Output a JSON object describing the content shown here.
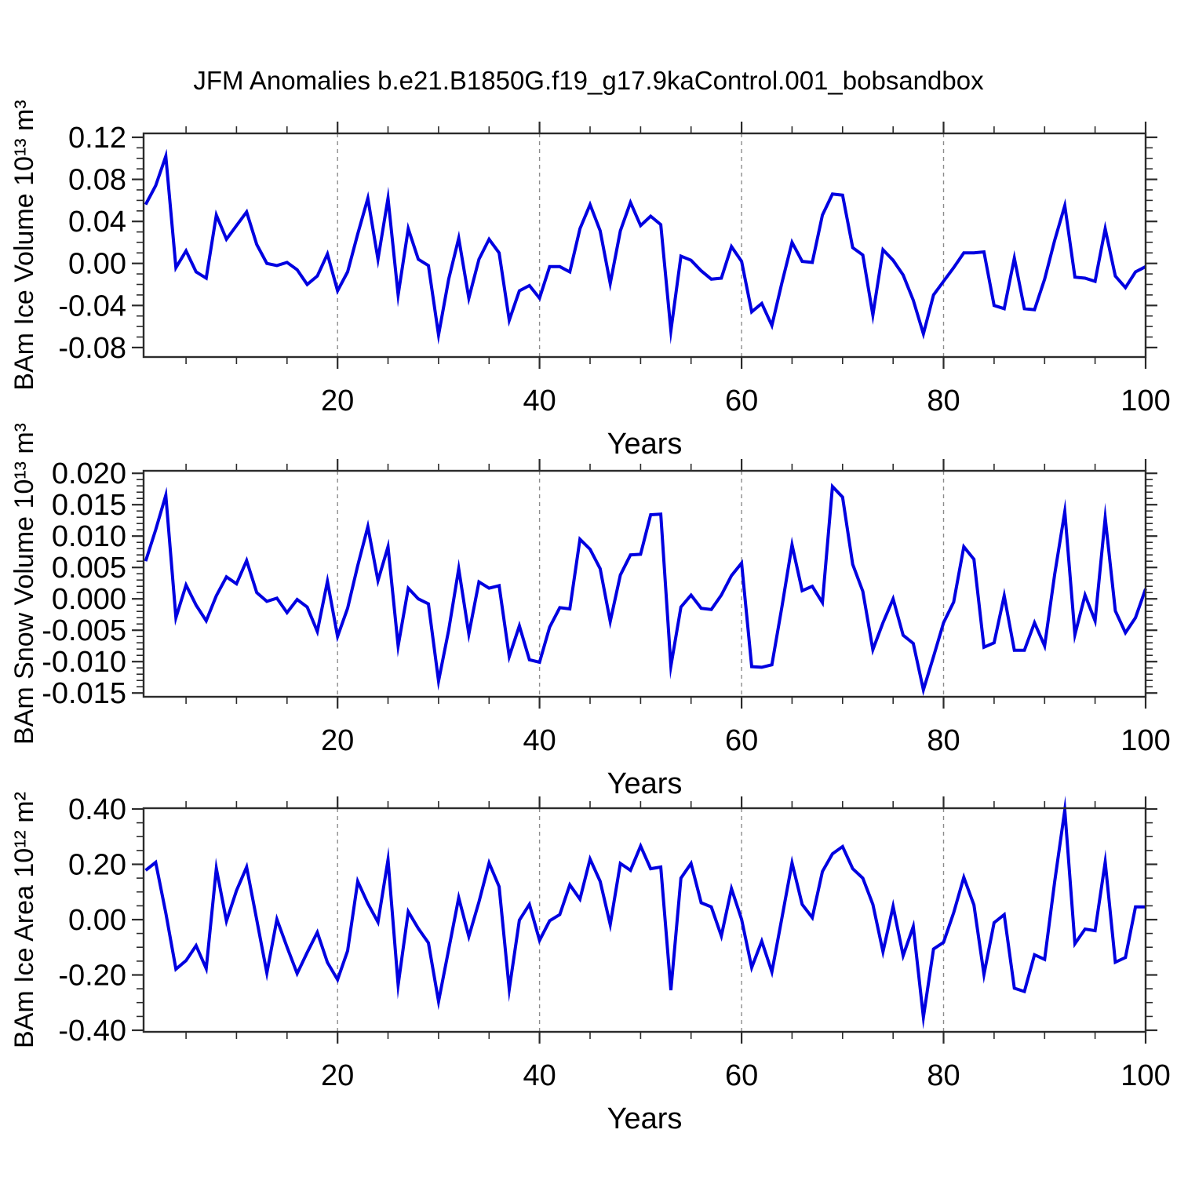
{
  "page_title": "JFM Anomalies b.e21.B1850G.f19_g17.9kaControl.001_bobsandbox",
  "colors": {
    "line": "#0000E0",
    "grid": "#8c8c8c",
    "frame": "#2b2b2b",
    "text": "#000000"
  },
  "x_axis": {
    "label": "Years",
    "year_start": 1,
    "year_end": 100,
    "range": [
      0.8,
      100
    ],
    "major_ticks": [
      20,
      40,
      60,
      80,
      100
    ],
    "minor_step": 5,
    "grid_lines": [
      20,
      40,
      60,
      80
    ]
  },
  "chart_data": [
    {
      "type": "line",
      "id": "ice-volume",
      "ylabel": "BAm Ice Volume 10¹³ m³",
      "legend": null,
      "grid": "vertical-dashed",
      "ylim": [
        -0.089,
        0.1237
      ],
      "yticks": [
        0.12,
        0.08,
        0.04,
        0.0,
        -0.04,
        -0.08
      ],
      "yminor_step": 0.01,
      "ytick_decimals": 2,
      "values": [
        0.056,
        0.074,
        0.102,
        -0.004,
        0.012,
        -0.008,
        -0.014,
        0.046,
        0.023,
        0.036,
        0.049,
        0.018,
        0.0,
        -0.002,
        0.001,
        -0.006,
        -0.02,
        -0.012,
        0.009,
        -0.026,
        -0.008,
        0.028,
        0.062,
        0.004,
        0.062,
        -0.03,
        0.033,
        0.004,
        -0.002,
        -0.068,
        -0.015,
        0.024,
        -0.033,
        0.004,
        0.023,
        0.01,
        -0.054,
        -0.026,
        -0.021,
        -0.033,
        -0.003,
        -0.003,
        -0.008,
        0.033,
        0.056,
        0.031,
        -0.019,
        0.031,
        0.058,
        0.036,
        0.045,
        0.037,
        -0.064,
        0.007,
        0.003,
        -0.007,
        -0.015,
        -0.014,
        0.016,
        0.002,
        -0.046,
        -0.038,
        -0.059,
        -0.018,
        0.02,
        0.002,
        0.001,
        0.046,
        0.066,
        0.065,
        0.015,
        0.008,
        -0.049,
        0.013,
        0.003,
        -0.011,
        -0.035,
        -0.067,
        -0.03,
        -0.017,
        -0.004,
        0.01,
        0.01,
        0.011,
        -0.04,
        -0.043,
        0.005,
        -0.043,
        -0.044,
        -0.015,
        0.022,
        0.055,
        -0.013,
        -0.014,
        -0.017,
        0.033,
        -0.012,
        -0.023,
        -0.008,
        -0.003
      ]
    },
    {
      "type": "line",
      "id": "snow-volume",
      "ylabel": "BAm Snow Volume 10¹³ m³",
      "legend": null,
      "grid": "vertical-dashed",
      "ylim": [
        -0.0156,
        0.0204
      ],
      "yticks": [
        0.02,
        0.015,
        0.01,
        0.005,
        0.0,
        -0.005,
        -0.01,
        -0.015
      ],
      "yminor_step": 0.001,
      "ytick_decimals": 3,
      "values": [
        0.006,
        0.011,
        0.0165,
        -0.003,
        0.0022,
        -0.001,
        -0.0035,
        0.0005,
        0.0035,
        0.0024,
        0.0061,
        0.001,
        -0.0004,
        0.0001,
        -0.0022,
        -0.0001,
        -0.0013,
        -0.0052,
        0.0028,
        -0.006,
        -0.0015,
        0.0053,
        0.0115,
        0.0029,
        0.0083,
        -0.0075,
        0.0017,
        0.0,
        -0.0008,
        -0.0131,
        -0.005,
        0.0048,
        -0.0056,
        0.0027,
        0.0017,
        0.0021,
        -0.0092,
        -0.0043,
        -0.0097,
        -0.0101,
        -0.0045,
        -0.0014,
        -0.0016,
        0.0095,
        0.0079,
        0.0048,
        -0.0036,
        0.0038,
        0.007,
        0.0071,
        0.0134,
        0.0135,
        -0.0107,
        -0.0013,
        0.0006,
        -0.0015,
        -0.0017,
        0.0006,
        0.0037,
        0.0057,
        -0.0108,
        -0.0109,
        -0.0105,
        -0.0012,
        0.0086,
        0.0013,
        0.002,
        -0.0006,
        0.0179,
        0.0162,
        0.0055,
        0.0012,
        -0.0081,
        -0.0038,
        0.0,
        -0.0058,
        -0.0071,
        -0.0145,
        -0.0092,
        -0.0038,
        -0.0005,
        0.0083,
        0.0063,
        -0.0077,
        -0.007,
        0.0005,
        -0.0082,
        -0.0082,
        -0.0038,
        -0.0075,
        0.0039,
        0.0139,
        -0.0057,
        0.0006,
        -0.0035,
        0.0129,
        -0.0019,
        -0.0054,
        -0.003,
        0.0016
      ]
    },
    {
      "type": "line",
      "id": "ice-area",
      "ylabel": "BAm Ice Area 10¹² m²",
      "legend": null,
      "grid": "vertical-dashed",
      "ylim": [
        -0.4057,
        0.4028
      ],
      "yticks": [
        0.4,
        0.2,
        0.0,
        -0.2,
        -0.4
      ],
      "yminor_step": 0.05,
      "ytick_decimals": 2,
      "values": [
        0.178,
        0.207,
        0.024,
        -0.179,
        -0.148,
        -0.094,
        -0.177,
        0.185,
        -0.005,
        0.105,
        0.19,
        -0.001,
        -0.193,
        0.001,
        -0.099,
        -0.195,
        -0.119,
        -0.046,
        -0.155,
        -0.217,
        -0.113,
        0.138,
        0.058,
        -0.009,
        0.216,
        -0.236,
        0.029,
        -0.032,
        -0.084,
        -0.296,
        -0.108,
        0.079,
        -0.061,
        0.064,
        0.205,
        0.119,
        -0.252,
        -0.002,
        0.055,
        -0.075,
        -0.004,
        0.018,
        0.126,
        0.074,
        0.219,
        0.138,
        -0.018,
        0.203,
        0.178,
        0.266,
        0.184,
        0.19,
        -0.255,
        0.15,
        0.203,
        0.061,
        0.046,
        -0.059,
        0.112,
        0.001,
        -0.173,
        -0.078,
        -0.189,
        0.008,
        0.205,
        0.055,
        0.007,
        0.174,
        0.238,
        0.264,
        0.184,
        0.15,
        0.055,
        -0.116,
        0.048,
        -0.13,
        -0.025,
        -0.353,
        -0.106,
        -0.082,
        0.025,
        0.153,
        0.053,
        -0.198,
        -0.011,
        0.018,
        -0.248,
        -0.26,
        -0.127,
        -0.144,
        0.137,
        0.396,
        -0.087,
        -0.034,
        -0.04,
        0.208,
        -0.154,
        -0.137,
        0.046,
        0.046
      ]
    }
  ]
}
